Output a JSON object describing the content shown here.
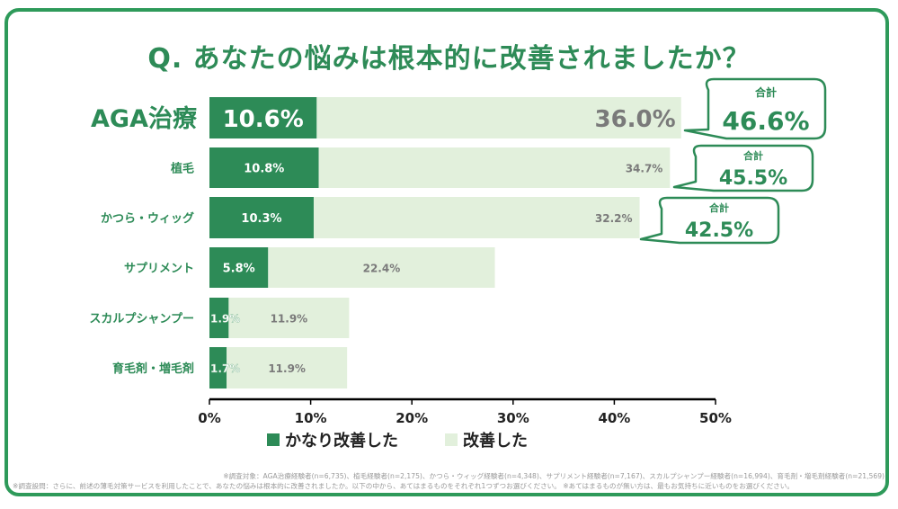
{
  "title": "Q. あなたの悩みは根本的に改善されましたか？",
  "colors": {
    "dark": "#2d8b57",
    "light": "#e2f0dc",
    "label": "#2d8b57",
    "callout_border": "#2d8b57",
    "light_value_text": "#7a7a7a"
  },
  "chart_data": {
    "type": "bar",
    "orientation": "horizontal",
    "stacked": true,
    "categories": [
      "AGA治療",
      "植毛",
      "かつら・ウィッグ",
      "サプリメント",
      "スカルプシャンプー",
      "育毛剤・増毛剤"
    ],
    "series": [
      {
        "name": "かなり改善した",
        "values": [
          10.6,
          10.8,
          10.3,
          5.8,
          1.9,
          1.7
        ]
      },
      {
        "name": "改善した",
        "values": [
          36.0,
          34.7,
          32.2,
          22.4,
          11.9,
          11.9
        ]
      }
    ],
    "labels_dark": [
      "10.6%",
      "10.8%",
      "10.3%",
      "5.8%",
      "1.9%",
      "1.7%"
    ],
    "labels_light": [
      "36.0%",
      "34.7%",
      "32.2%",
      "22.4%",
      "11.9%",
      "11.9%"
    ],
    "totals": [
      {
        "caption": "合計",
        "value": "46.6%"
      },
      {
        "caption": "合計",
        "value": "45.5%"
      },
      {
        "caption": "合計",
        "value": "42.5%"
      }
    ],
    "xlim": [
      0,
      50
    ],
    "xticks": [
      "0%",
      "10%",
      "20%",
      "30%",
      "40%",
      "50%"
    ],
    "legend_position": "bottom"
  },
  "notes": {
    "line1": "※調査対象：AGA治療経験者(n=6,735)、植毛経験者(n=2,175)、かつら・ウィッグ経験者(n=4,348)、サプリメント経験者(n=7,167)、スカルプシャンプー経験者(n=16,994)、育毛剤・増毛剤経験者(n=21,569)",
    "line2": "※調査設問：さらに、前述の薄毛対策サービスを利用したことで、あなたの悩みは根本的に改善されましたか。以下の中から、あてはまるものをそれぞれ1つずつお選びください。 ※あてはまるものが無い方は、最もお気持ちに近いものをお選びください。"
  }
}
